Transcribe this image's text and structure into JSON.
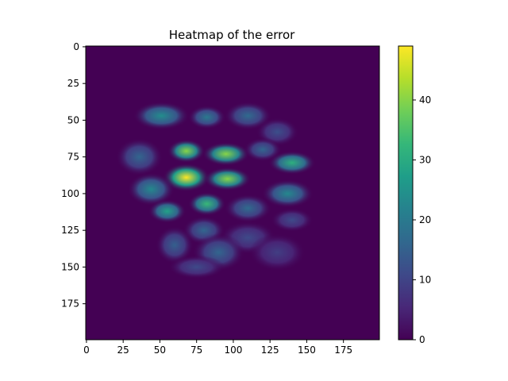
{
  "chart_data": {
    "type": "heatmap",
    "title": "Heatmap of the error",
    "xlabel": "",
    "ylabel": "",
    "grid": false,
    "x_ticks": [
      0,
      25,
      50,
      75,
      100,
      125,
      150,
      175
    ],
    "y_ticks": [
      0,
      25,
      50,
      75,
      100,
      125,
      150,
      175
    ],
    "xlim": [
      0,
      199
    ],
    "ylim": [
      199,
      0
    ],
    "shape": [
      200,
      200
    ],
    "colorbar": {
      "min": 0,
      "max": 49,
      "ticks": [
        0,
        10,
        20,
        30,
        40
      ]
    },
    "colormap": "viridis",
    "colormap_stops": [
      "#440154",
      "#482878",
      "#3e4989",
      "#31688e",
      "#26828e",
      "#1f9e89",
      "#35b779",
      "#6ece58",
      "#b5de2b",
      "#fde725"
    ],
    "background_value": 0,
    "blobs": [
      {
        "x": 51,
        "y": 47,
        "rx": 12,
        "ry": 6,
        "value": 24
      },
      {
        "x": 82,
        "y": 48,
        "rx": 8,
        "ry": 5,
        "value": 20
      },
      {
        "x": 110,
        "y": 47,
        "rx": 10,
        "ry": 6,
        "value": 17
      },
      {
        "x": 130,
        "y": 58,
        "rx": 9,
        "ry": 6,
        "value": 12
      },
      {
        "x": 36,
        "y": 75,
        "rx": 10,
        "ry": 8,
        "value": 16
      },
      {
        "x": 68,
        "y": 71,
        "rx": 8,
        "ry": 5,
        "value": 40
      },
      {
        "x": 95,
        "y": 73,
        "rx": 10,
        "ry": 5,
        "value": 40
      },
      {
        "x": 120,
        "y": 70,
        "rx": 8,
        "ry": 5,
        "value": 16
      },
      {
        "x": 140,
        "y": 79,
        "rx": 10,
        "ry": 5,
        "value": 31
      },
      {
        "x": 68,
        "y": 89,
        "rx": 10,
        "ry": 6,
        "value": 49
      },
      {
        "x": 96,
        "y": 90,
        "rx": 10,
        "ry": 5,
        "value": 40
      },
      {
        "x": 44,
        "y": 97,
        "rx": 10,
        "ry": 7,
        "value": 23
      },
      {
        "x": 137,
        "y": 100,
        "rx": 11,
        "ry": 6,
        "value": 23
      },
      {
        "x": 82,
        "y": 107,
        "rx": 8,
        "ry": 5,
        "value": 33
      },
      {
        "x": 55,
        "y": 112,
        "rx": 8,
        "ry": 5,
        "value": 28
      },
      {
        "x": 110,
        "y": 110,
        "rx": 10,
        "ry": 6,
        "value": 17
      },
      {
        "x": 140,
        "y": 118,
        "rx": 9,
        "ry": 5,
        "value": 11
      },
      {
        "x": 80,
        "y": 125,
        "rx": 9,
        "ry": 6,
        "value": 16
      },
      {
        "x": 110,
        "y": 130,
        "rx": 12,
        "ry": 7,
        "value": 11
      },
      {
        "x": 60,
        "y": 135,
        "rx": 8,
        "ry": 8,
        "value": 15
      },
      {
        "x": 90,
        "y": 140,
        "rx": 11,
        "ry": 8,
        "value": 16
      },
      {
        "x": 130,
        "y": 140,
        "rx": 12,
        "ry": 8,
        "value": 9
      },
      {
        "x": 75,
        "y": 150,
        "rx": 12,
        "ry": 5,
        "value": 11
      }
    ]
  }
}
